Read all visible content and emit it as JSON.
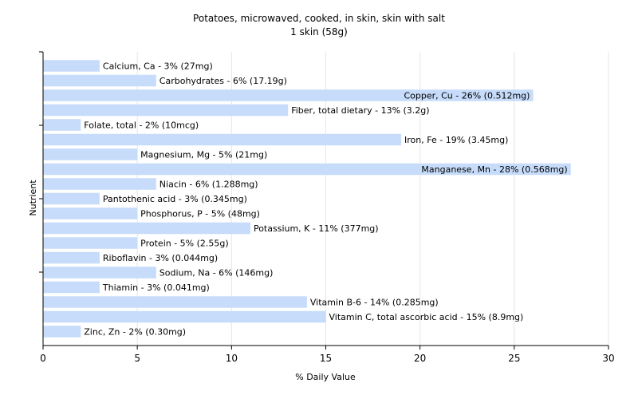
{
  "chart_data": {
    "type": "bar",
    "orientation": "horizontal",
    "title": "Potatoes, microwaved, cooked, in skin, skin with salt",
    "subtitle": "1 skin (58g)",
    "xlabel": "% Daily Value",
    "ylabel": "Nutrient",
    "xlim": [
      0,
      30
    ],
    "xticks": [
      "0",
      "5",
      "10",
      "15",
      "20",
      "25",
      "30"
    ],
    "grid": true,
    "bar_color": "#c6dcfa",
    "categories": [
      "Calcium, Ca",
      "Carbohydrates",
      "Copper, Cu",
      "Fiber, total dietary",
      "Folate, total",
      "Iron, Fe",
      "Magnesium, Mg",
      "Manganese, Mn",
      "Niacin",
      "Pantothenic acid",
      "Phosphorus, P",
      "Potassium, K",
      "Protein",
      "Riboflavin",
      "Sodium, Na",
      "Thiamin",
      "Vitamin B-6",
      "Vitamin C, total ascorbic acid",
      "Zinc, Zn"
    ],
    "values": [
      3,
      6,
      26,
      13,
      2,
      19,
      5,
      28,
      6,
      3,
      5,
      11,
      5,
      3,
      6,
      3,
      14,
      15,
      2
    ],
    "labels": [
      "Calcium, Ca - 3% (27mg)",
      "Carbohydrates - 6% (17.19g)",
      "Copper, Cu - 26% (0.512mg)",
      "Fiber, total dietary - 13% (3.2g)",
      "Folate, total - 2% (10mcg)",
      "Iron, Fe - 19% (3.45mg)",
      "Magnesium, Mg - 5% (21mg)",
      "Manganese, Mn - 28% (0.568mg)",
      "Niacin - 6% (1.288mg)",
      "Pantothenic acid - 3% (0.345mg)",
      "Phosphorus, P - 5% (48mg)",
      "Potassium, K - 11% (377mg)",
      "Protein - 5% (2.55g)",
      "Riboflavin - 3% (0.044mg)",
      "Sodium, Na - 6% (146mg)",
      "Thiamin - 3% (0.041mg)",
      "Vitamin B-6 - 14% (0.285mg)",
      "Vitamin C, total ascorbic acid - 15% (8.9mg)",
      "Zinc, Zn - 2% (0.30mg)"
    ]
  }
}
